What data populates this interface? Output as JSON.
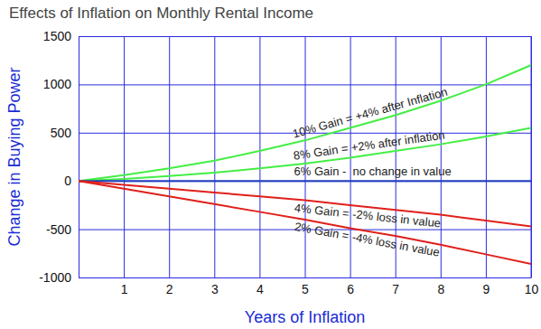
{
  "chart_data": {
    "type": "line",
    "title": "Effects of Inflation on Monthly Rental Income",
    "x_label": "Years of Inflation",
    "y_label": "Change in Buying Power",
    "x": [
      0,
      1,
      2,
      3,
      4,
      5,
      6,
      7,
      8,
      9,
      10
    ],
    "series": [
      {
        "name": "10% Gain = +4% after Inflation",
        "color": "#44ee44",
        "values": [
          0,
          60,
          130,
          210,
          310,
          420,
          550,
          680,
          830,
          1000,
          1200
        ]
      },
      {
        "name": "8% Gain = +2% after inflation",
        "color": "#44ee44",
        "values": [
          0,
          20,
          50,
          85,
          130,
          180,
          240,
          310,
          380,
          460,
          550
        ]
      },
      {
        "name": "6% Gain -  no change in value",
        "color": "#1f3fbf",
        "values": [
          0,
          0,
          0,
          0,
          0,
          0,
          0,
          0,
          0,
          0,
          0
        ]
      },
      {
        "name": "4% Gain = -2% loss in value",
        "color": "#e0201a",
        "values": [
          0,
          -40,
          -80,
          -120,
          -160,
          -200,
          -250,
          -300,
          -350,
          -410,
          -470
        ]
      },
      {
        "name": "2% Gain = -4% loss in value",
        "color": "#e0201a",
        "values": [
          0,
          -80,
          -160,
          -240,
          -320,
          -400,
          -490,
          -570,
          -660,
          -760,
          -860
        ]
      }
    ],
    "xlim": [
      0,
      10
    ],
    "xticks": [
      1,
      2,
      3,
      4,
      5,
      6,
      7,
      8,
      9,
      10
    ],
    "ylim": [
      -1000,
      1500
    ],
    "yticks": [
      -1000,
      -500,
      0,
      500,
      1000,
      1500
    ],
    "grid": true
  }
}
